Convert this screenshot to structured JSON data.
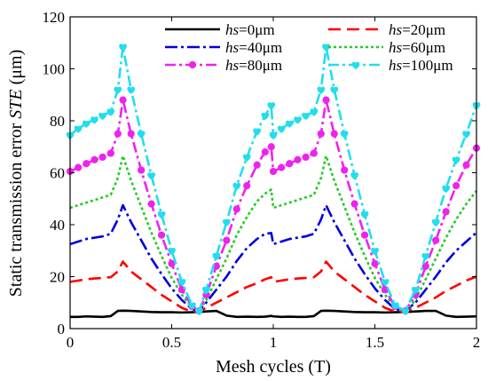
{
  "chart_data": {
    "type": "line",
    "title": "",
    "xlabel": "Mesh cycles (T)",
    "ylabel": "Static transmission error STE (μm)",
    "ylabel_parts": {
      "pre": "Static transmission error ",
      "ital": "STE",
      "post": " (μm)"
    },
    "xlim": [
      0,
      2
    ],
    "ylim": [
      0,
      120
    ],
    "xticks": [
      "0",
      "0.5",
      "1",
      "1.5",
      "2"
    ],
    "xtick_values": [
      0,
      0.5,
      1,
      1.5,
      2
    ],
    "yticks": [
      "0",
      "20",
      "40",
      "60",
      "80",
      "100",
      "120"
    ],
    "ytick_values": [
      0,
      20,
      40,
      60,
      80,
      100,
      120
    ],
    "grid": false,
    "legend_position": "top-right",
    "x": [
      0,
      0.04,
      0.08,
      0.12,
      0.16,
      0.2,
      0.235,
      0.26,
      0.3,
      0.35,
      0.4,
      0.45,
      0.5,
      0.55,
      0.6,
      0.635,
      0.67,
      0.72,
      0.77,
      0.82,
      0.87,
      0.92,
      0.96,
      0.99,
      1.0,
      1.04,
      1.08,
      1.12,
      1.16,
      1.2,
      1.235,
      1.26,
      1.3,
      1.35,
      1.4,
      1.45,
      1.5,
      1.55,
      1.6,
      1.65,
      1.7,
      1.75,
      1.8,
      1.85,
      1.9,
      1.95,
      2.0
    ],
    "series": [
      {
        "name": "=0μm",
        "param": "hs",
        "color": "#000000",
        "dash": "",
        "marker": "none",
        "values": [
          4.5,
          4.5,
          4.7,
          4.6,
          4.5,
          4.8,
          6.8,
          6.9,
          6.8,
          6.6,
          6.4,
          6.3,
          6.3,
          6.2,
          6.3,
          6.4,
          6.6,
          6.8,
          5,
          4.5,
          4.6,
          4.5,
          4.6,
          4.9,
          4.7,
          4.5,
          4.6,
          4.5,
          4.5,
          4.8,
          6.8,
          6.9,
          6.8,
          6.6,
          6.4,
          6.3,
          6.3,
          6.2,
          6.3,
          6.4,
          6.6,
          6.8,
          6.8,
          5,
          4.5,
          4.6,
          4.7
        ]
      },
      {
        "name": "=20μm",
        "param": "hs",
        "color": "#ff0000",
        "dash": "14,7",
        "marker": "none",
        "values": [
          18,
          18.5,
          19,
          19.3,
          19.5,
          19.8,
          22,
          25.8,
          22,
          19,
          16,
          13,
          10.5,
          8,
          6.5,
          6.5,
          8,
          10,
          12,
          14,
          16,
          17.5,
          19,
          19.8,
          18,
          18.5,
          19,
          19.3,
          19.5,
          19.8,
          22,
          25.8,
          22,
          19,
          16,
          13,
          10.5,
          8,
          6.5,
          6.5,
          8,
          10,
          12,
          14.5,
          16.5,
          18.5,
          20
        ]
      },
      {
        "name": "=40μm",
        "param": "hs",
        "color": "#0000dd",
        "dash": "14,4,3,4",
        "marker": "none",
        "values": [
          32.5,
          33.5,
          34.5,
          35,
          35.5,
          36.5,
          42,
          47.5,
          41,
          34,
          27,
          21,
          15.5,
          11,
          7.5,
          6.8,
          10,
          15,
          20,
          26,
          31,
          34.5,
          36.5,
          36.8,
          32.5,
          33.5,
          34.5,
          35,
          35.5,
          36.5,
          42,
          47.5,
          41,
          34,
          27,
          21,
          15.5,
          11,
          7.5,
          6.8,
          10,
          15,
          20,
          25.5,
          30,
          33.5,
          37
        ]
      },
      {
        "name": "=60μm",
        "param": "hs",
        "color": "#22cc22",
        "dash": "3,3",
        "marker": "none",
        "values": [
          46.5,
          47.5,
          48.5,
          49.5,
          50.5,
          51.5,
          58,
          66.5,
          57,
          47,
          37,
          28,
          19.5,
          13,
          8,
          6.8,
          11,
          19,
          27,
          36,
          43,
          49,
          52,
          53.5,
          46.5,
          47.5,
          48.5,
          49.5,
          50.5,
          51.5,
          58,
          66.5,
          57,
          47,
          37,
          28,
          19.5,
          13,
          8,
          6.8,
          11,
          19,
          27,
          35,
          42,
          48,
          53
        ]
      },
      {
        "name": "=80μm",
        "param": "hs",
        "color": "#ee22ee",
        "dash": "12,4,3,4",
        "marker": "circle",
        "values": [
          60.5,
          62,
          63.5,
          65,
          66,
          67.5,
          75,
          88,
          75,
          61,
          48,
          36,
          25,
          15,
          8.5,
          6.8,
          13,
          24,
          34,
          46,
          55,
          63,
          68,
          70,
          60.5,
          62,
          63.5,
          65,
          66,
          67.5,
          75,
          88,
          75,
          61,
          48,
          36,
          25,
          15,
          8.5,
          6.8,
          13,
          24,
          34,
          45,
          55,
          63,
          69.5
        ]
      },
      {
        "name": "=100μm",
        "param": "hs",
        "color": "#22ddee",
        "dash": "12,4,3,4",
        "marker": "heart",
        "values": [
          74.5,
          77,
          79,
          80.5,
          82,
          83.5,
          92,
          108.5,
          92,
          75,
          59,
          44,
          30,
          18,
          9,
          6.8,
          15,
          28,
          41,
          55,
          66,
          76,
          82,
          86,
          74.5,
          77,
          79,
          80.5,
          82,
          83.5,
          92,
          108.5,
          92,
          75,
          59,
          44,
          30,
          18,
          9,
          6.8,
          15,
          28,
          41,
          54,
          65,
          75,
          86
        ]
      }
    ]
  }
}
